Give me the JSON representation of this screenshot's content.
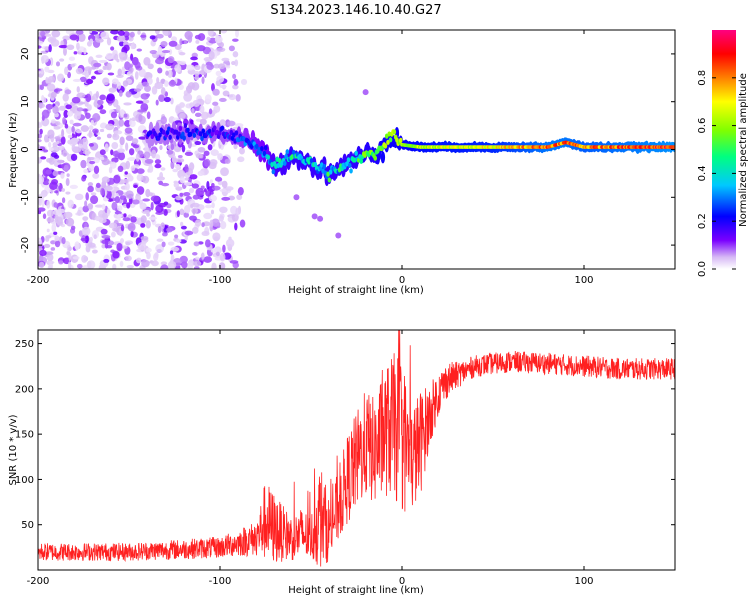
{
  "title": "S134.2023.146.10.40.G27",
  "chart_data": [
    {
      "type": "heatmap",
      "name": "spectrogram",
      "xlabel": "Height of straight line (km)",
      "ylabel": "Frequency (Hz)",
      "xlim": [
        -200,
        150
      ],
      "ylim": [
        -25,
        25
      ],
      "xticks": [
        -200,
        -100,
        0,
        100
      ],
      "yticks": [
        -20,
        -10,
        0,
        10,
        20
      ],
      "colorbar": {
        "label": "Normalized spectral amplitude",
        "range": [
          0,
          1
        ],
        "ticks": [
          0.0,
          0.2,
          0.4,
          0.6,
          0.8
        ],
        "tick_labels": [
          "0.0",
          "0.2",
          "0.4",
          "0.6",
          "0.8"
        ],
        "colors": [
          "#ffffff",
          "#d6b8f5",
          "#7a00ff",
          "#0000ff",
          "#00c8ff",
          "#00ff80",
          "#80ff00",
          "#ffff00",
          "#ff8000",
          "#ff0000",
          "#ff0080"
        ]
      },
      "ridge": {
        "x": [
          -140,
          -120,
          -100,
          -85,
          -75,
          -70,
          -60,
          -50,
          -40,
          -30,
          -20,
          -15,
          -10,
          -5,
          0,
          10,
          50,
          80,
          90,
          100,
          150
        ],
        "freq": [
          3,
          3.5,
          3.5,
          2,
          -1,
          -4,
          -1,
          -3,
          -5,
          -3,
          -1,
          -1,
          1,
          3,
          1,
          0.5,
          0.5,
          0.5,
          1.5,
          0.5,
          0.5
        ],
        "amplitude": [
          0.2,
          0.25,
          0.25,
          0.3,
          0.35,
          0.45,
          0.5,
          0.5,
          0.5,
          0.5,
          0.55,
          0.55,
          0.6,
          0.6,
          0.6,
          0.65,
          0.7,
          0.85,
          0.85,
          0.8,
          0.9
        ]
      }
    },
    {
      "type": "line",
      "name": "snr",
      "xlabel": "Height of straight line (km)",
      "ylabel": "SNR (10 * v/v)",
      "xlim": [
        -200,
        150
      ],
      "ylim": [
        0,
        265
      ],
      "xticks": [
        -200,
        -100,
        0,
        100
      ],
      "yticks": [
        50,
        100,
        150,
        200,
        250
      ],
      "color": "#ff2020",
      "envelope": {
        "x": [
          -200,
          -150,
          -100,
          -90,
          -80,
          -75,
          -70,
          -65,
          -60,
          -55,
          -50,
          -45,
          -40,
          -35,
          -30,
          -25,
          -20,
          -15,
          -10,
          -5,
          0,
          5,
          10,
          15,
          20,
          25,
          30,
          40,
          50,
          60,
          80,
          100,
          120,
          150
        ],
        "mean": [
          20,
          20,
          25,
          30,
          35,
          55,
          45,
          40,
          35,
          40,
          35,
          60,
          45,
          70,
          100,
          120,
          140,
          130,
          150,
          160,
          150,
          120,
          140,
          170,
          195,
          210,
          215,
          225,
          228,
          230,
          228,
          225,
          222,
          222
        ],
        "noise": [
          10,
          10,
          12,
          15,
          20,
          45,
          40,
          30,
          25,
          30,
          25,
          60,
          35,
          40,
          50,
          55,
          60,
          60,
          70,
          80,
          90,
          60,
          60,
          35,
          25,
          20,
          15,
          12,
          12,
          12,
          12,
          12,
          12,
          12
        ]
      }
    }
  ]
}
